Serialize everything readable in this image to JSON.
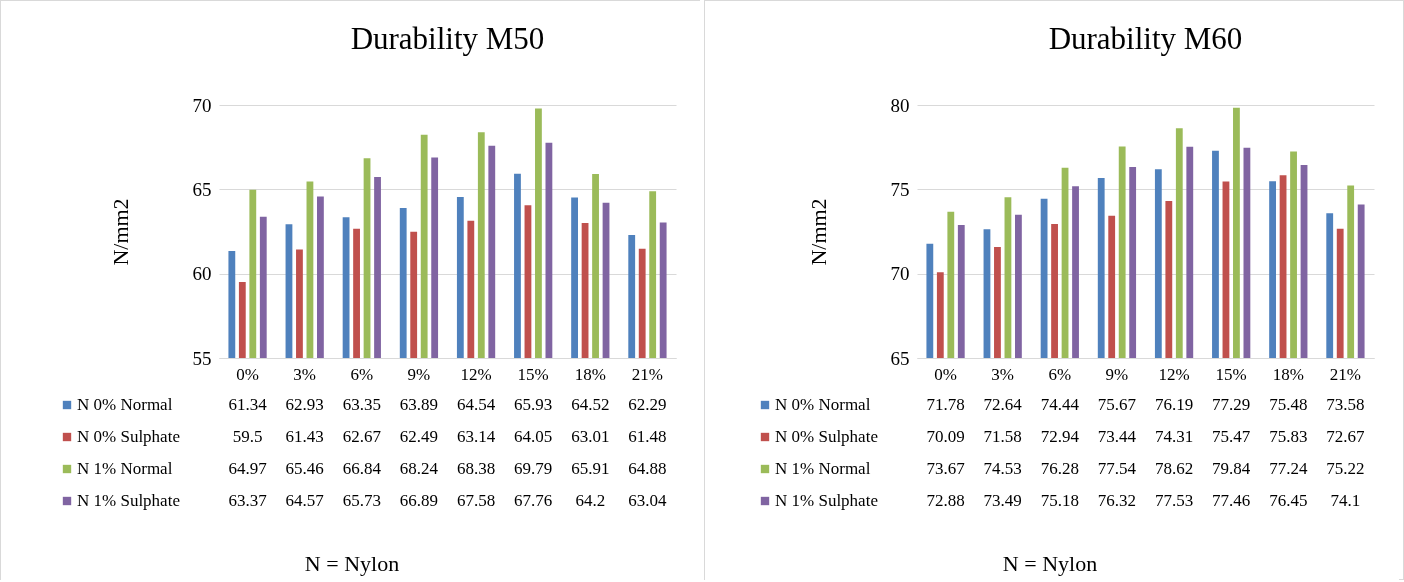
{
  "chart_data": [
    {
      "type": "bar",
      "title": "Durability M50",
      "ylabel": "N/mm2",
      "categories": [
        "0%",
        "3%",
        "6%",
        "9%",
        "12%",
        "15%",
        "18%",
        "21%"
      ],
      "series": [
        {
          "name": "N 0% Normal",
          "color": "#4f81bd",
          "values": [
            61.34,
            62.93,
            63.35,
            63.89,
            64.54,
            65.93,
            64.52,
            62.29
          ]
        },
        {
          "name": "N 0% Sulphate",
          "color": "#c0504d",
          "values": [
            59.5,
            61.43,
            62.67,
            62.49,
            63.14,
            64.05,
            63.01,
            61.48
          ]
        },
        {
          "name": "N 1% Normal",
          "color": "#9bbb59",
          "values": [
            64.97,
            65.46,
            66.84,
            68.24,
            68.38,
            69.79,
            65.91,
            64.88
          ]
        },
        {
          "name": "N 1% Sulphate",
          "color": "#8064a2",
          "values": [
            63.37,
            64.57,
            65.73,
            66.89,
            67.58,
            67.76,
            64.2,
            63.04
          ]
        }
      ],
      "ylim": [
        55,
        70
      ],
      "yticks": [
        55,
        60,
        65,
        70
      ],
      "grid": "y",
      "legend": "bottom",
      "data_labels": true,
      "annotations": [
        "N = Nylon"
      ]
    },
    {
      "type": "bar",
      "title": "Durability M60",
      "ylabel": "N/mm2",
      "categories": [
        "0%",
        "3%",
        "6%",
        "9%",
        "12%",
        "15%",
        "18%",
        "21%"
      ],
      "series": [
        {
          "name": "N 0% Normal",
          "color": "#4f81bd",
          "values": [
            71.78,
            72.64,
            74.44,
            75.67,
            76.19,
            77.29,
            75.48,
            73.58
          ]
        },
        {
          "name": "N 0% Sulphate",
          "color": "#c0504d",
          "values": [
            70.09,
            71.58,
            72.94,
            73.44,
            74.31,
            75.47,
            75.83,
            72.67
          ]
        },
        {
          "name": "N 1% Normal",
          "color": "#9bbb59",
          "values": [
            73.67,
            74.53,
            76.28,
            77.54,
            78.62,
            79.84,
            77.24,
            75.22
          ]
        },
        {
          "name": "N 1% Sulphate",
          "color": "#8064a2",
          "values": [
            72.88,
            73.49,
            75.18,
            76.32,
            77.53,
            77.46,
            76.45,
            74.1
          ]
        }
      ],
      "ylim": [
        65,
        80
      ],
      "yticks": [
        65,
        70,
        75,
        80
      ],
      "grid": "y",
      "legend": "bottom",
      "data_labels": true,
      "annotations": [
        "N = Nylon"
      ]
    }
  ]
}
